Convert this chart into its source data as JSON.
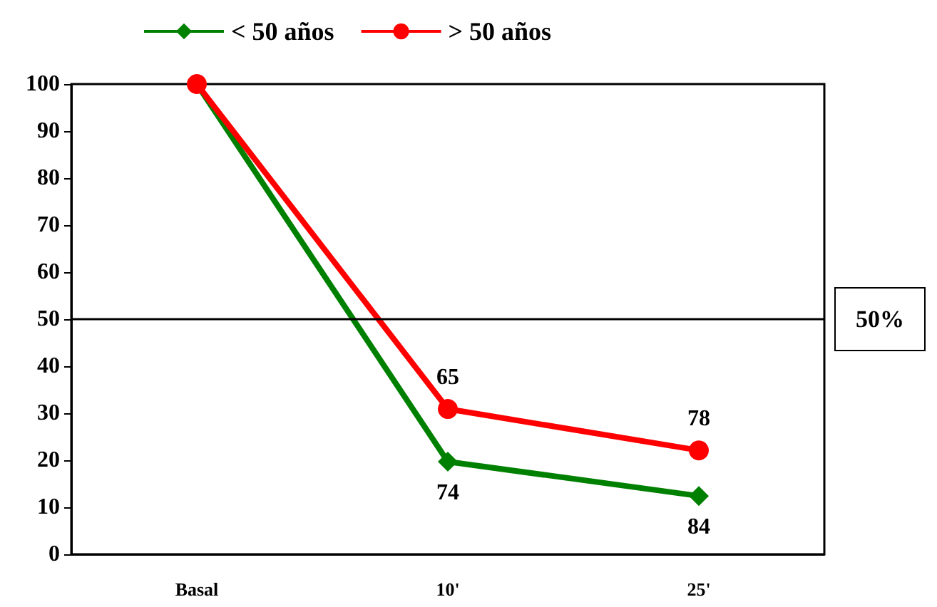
{
  "chart_data": {
    "type": "line",
    "categories": [
      "Basal",
      "10'",
      "25'"
    ],
    "series": [
      {
        "name": "< 50 años",
        "color": "#008000",
        "marker": "diamond",
        "values": [
          100,
          19.7,
          12.4
        ]
      },
      {
        "name": "> 50 años",
        "color": "#ff0000",
        "marker": "circle",
        "values": [
          100,
          30.9,
          22.1
        ]
      }
    ],
    "ylim": [
      0,
      100
    ],
    "yticks": [
      0,
      10,
      20,
      30,
      40,
      50,
      60,
      70,
      80,
      90,
      100
    ],
    "grid": false,
    "legend": "top",
    "ref_lines": [
      {
        "axis": "y",
        "value": 50,
        "label": "50%",
        "color": "#000000"
      }
    ],
    "annotations": [
      {
        "text": "74",
        "x": "10'",
        "y": 19.7
      },
      {
        "text": "65",
        "x": "10'",
        "y": 30.9
      },
      {
        "text": "78",
        "x": "25'",
        "y": 22.1
      },
      {
        "text": "84",
        "x": "25'",
        "y": 12.4
      }
    ]
  }
}
